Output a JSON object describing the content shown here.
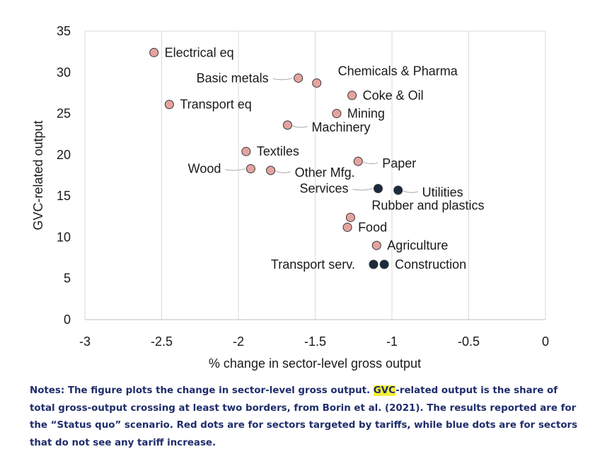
{
  "chart_data": {
    "type": "scatter",
    "title": "",
    "xlabel": "% change in sector-level gross output",
    "ylabel": "GVC-related output",
    "xlim": [
      -3,
      0
    ],
    "ylim": [
      0,
      35
    ],
    "xticks": [
      -3,
      -2.5,
      -2,
      -1.5,
      -1,
      -0.5,
      0
    ],
    "xtick_labels": [
      "-3",
      "-2.5",
      "-2",
      "-1.5",
      "-1",
      "-0.5",
      "0"
    ],
    "yticks": [
      0,
      5,
      10,
      15,
      20,
      25,
      30,
      35
    ],
    "ytick_labels": [
      "0",
      "5",
      "10",
      "15",
      "20",
      "25",
      "30",
      "35"
    ],
    "grid": "vertical",
    "colors": {
      "targeted": "#e5a3a0",
      "not_targeted": "#1b2a3d",
      "grid": "#d9d9d9"
    },
    "points": [
      {
        "label": "Electrical eq",
        "x": -2.55,
        "y": 32.4,
        "targeted": true,
        "label_side": "right"
      },
      {
        "label": "Basic metals",
        "x": -1.61,
        "y": 29.3,
        "targeted": true,
        "label_side": "left-leader"
      },
      {
        "label": "Chemicals & Pharma",
        "x": -1.49,
        "y": 28.7,
        "targeted": true,
        "label_side": "above-right"
      },
      {
        "label": "Coke & Oil",
        "x": -1.26,
        "y": 27.2,
        "targeted": true,
        "label_side": "right"
      },
      {
        "label": "Transport eq",
        "x": -2.45,
        "y": 26.1,
        "targeted": true,
        "label_side": "right"
      },
      {
        "label": "Mining",
        "x": -1.36,
        "y": 25.0,
        "targeted": true,
        "label_side": "right"
      },
      {
        "label": "Machinery",
        "x": -1.68,
        "y": 23.6,
        "targeted": true,
        "label_side": "right-leader"
      },
      {
        "label": "Textiles",
        "x": -1.95,
        "y": 20.4,
        "targeted": true,
        "label_side": "right"
      },
      {
        "label": "Paper",
        "x": -1.22,
        "y": 19.2,
        "targeted": true,
        "label_side": "right-leader"
      },
      {
        "label": "Wood",
        "x": -1.92,
        "y": 18.3,
        "targeted": true,
        "label_side": "left-leader"
      },
      {
        "label": "Other Mfg.",
        "x": -1.79,
        "y": 18.1,
        "targeted": true,
        "label_side": "right-leader"
      },
      {
        "label": "Services",
        "x": -1.09,
        "y": 15.9,
        "targeted": false,
        "label_side": "left-leader"
      },
      {
        "label": "Utilities",
        "x": -0.96,
        "y": 15.7,
        "targeted": false,
        "label_side": "right-leader"
      },
      {
        "label": "Rubber and plastics",
        "x": -1.27,
        "y": 12.4,
        "targeted": true,
        "label_side": "above-right"
      },
      {
        "label": "Food",
        "x": -1.29,
        "y": 11.2,
        "targeted": true,
        "label_side": "right"
      },
      {
        "label": "Agriculture",
        "x": -1.1,
        "y": 9.0,
        "targeted": true,
        "label_side": "right"
      },
      {
        "label": "Transport serv.",
        "x": -1.12,
        "y": 6.7,
        "targeted": false,
        "label_side": "left"
      },
      {
        "label": "Construction",
        "x": -1.05,
        "y": 6.7,
        "targeted": false,
        "label_side": "right"
      }
    ]
  },
  "notes": {
    "part1": "Notes: The figure plots the change in sector-level gross output. ",
    "highlight": "GVC",
    "part2": "-related output is the share of total gross-output crossing at least two borders, from Borin et al. (2021). The results reported are for the “Status quo” scenario. Red dots are for sectors targeted by tariffs, while blue dots are for sectors that do not see any tariff increase."
  }
}
